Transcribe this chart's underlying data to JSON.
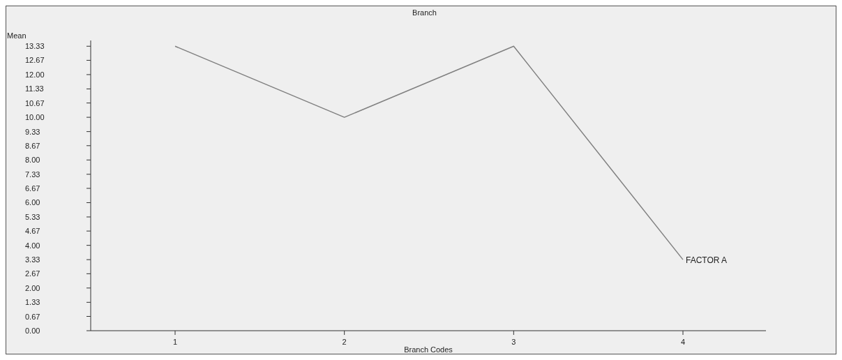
{
  "chart_data": {
    "type": "line",
    "title": "Branch",
    "xlabel": "Branch Codes",
    "ylabel": "Mean",
    "categories": [
      "1",
      "2",
      "3",
      "4"
    ],
    "series": [
      {
        "name": "FACTOR A",
        "color": "#808080",
        "values": [
          13.33,
          10.0,
          13.33,
          3.33
        ]
      }
    ],
    "ylim": [
      0,
      13.6
    ],
    "yticks": [
      {
        "value": 0,
        "label": "0.00"
      },
      0.67,
      1.33,
      {
        "value": 2,
        "label": "2.00"
      },
      2.67,
      3.33,
      {
        "value": 4,
        "label": "4.00"
      },
      4.67,
      5.33,
      {
        "value": 6,
        "label": "6.00"
      },
      6.67,
      7.33,
      {
        "value": 8,
        "label": "8.00"
      },
      8.67,
      9.33,
      {
        "value": 10,
        "label": "10.00"
      },
      10.67,
      11.33,
      {
        "value": 12,
        "label": "12.00"
      },
      12.67,
      13.33
    ],
    "grid": false,
    "marker": "none",
    "line_style": "solid"
  }
}
